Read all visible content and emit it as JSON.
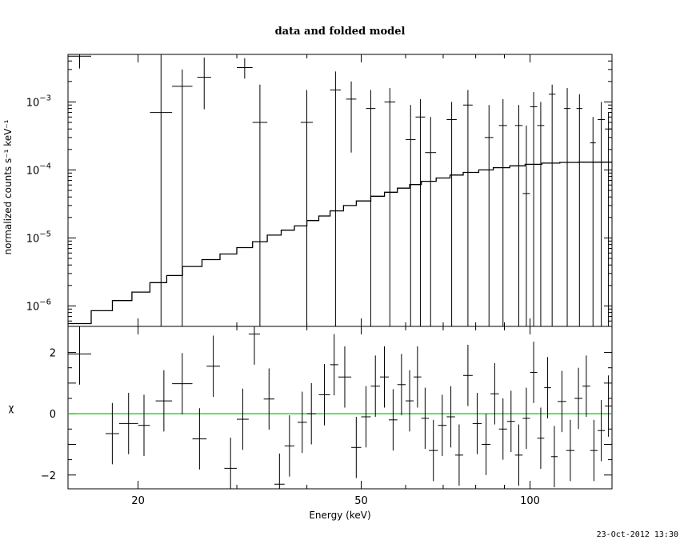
{
  "title": "data and folded model",
  "timestamp": "23-Oct-2012 13:30",
  "chart_data": [
    {
      "panel": "top",
      "type": "scatter",
      "ylabel": "normalized counts s⁻¹ keV⁻¹",
      "y_scale": "log",
      "xlim": [
        15,
        140
      ],
      "ylim": [
        5e-07,
        0.005
      ],
      "yticks": [
        {
          "base": "10",
          "exp": "−3",
          "value": 0.001
        },
        {
          "base": "10",
          "exp": "−4",
          "value": 0.0001
        },
        {
          "base": "10",
          "exp": "−5",
          "value": 1e-05
        },
        {
          "base": "10",
          "exp": "−6",
          "value": 1e-06
        }
      ],
      "data_points": [
        {
          "x0": 15.0,
          "x1": 16.5,
          "y": 0.0047,
          "ylo": 0.0031,
          "yhi": 0.006
        },
        {
          "x0": 16.5,
          "x1": 18.0,
          "y": 5e-07,
          "ylo": 5e-07,
          "yhi": 5e-07
        },
        {
          "x0": 21.0,
          "x1": 23.0,
          "y": 0.0007,
          "ylo": 5e-07,
          "yhi": 0.0055
        },
        {
          "x0": 23.0,
          "x1": 25.0,
          "y": 0.0017,
          "ylo": 5e-07,
          "yhi": 0.003
        },
        {
          "x0": 25.5,
          "x1": 27.0,
          "y": 0.0023,
          "ylo": 0.00078,
          "yhi": 0.0045
        },
        {
          "x0": 30.0,
          "x1": 32.0,
          "y": 0.0032,
          "ylo": 0.0022,
          "yhi": 0.0044
        },
        {
          "x0": 32.0,
          "x1": 34.0,
          "y": 0.0005,
          "ylo": 5e-07,
          "yhi": 0.0018
        },
        {
          "x0": 39.0,
          "x1": 41.0,
          "y": 0.0005,
          "ylo": 5e-07,
          "yhi": 0.0015
        },
        {
          "x0": 44.0,
          "x1": 46.0,
          "y": 0.0015,
          "ylo": 5e-07,
          "yhi": 0.0028
        },
        {
          "x0": 47.0,
          "x1": 49.0,
          "y": 0.0011,
          "ylo": 0.00018,
          "yhi": 0.002
        },
        {
          "x0": 51.0,
          "x1": 53.0,
          "y": 0.0008,
          "ylo": 5e-07,
          "yhi": 0.0015
        },
        {
          "x0": 55.0,
          "x1": 57.5,
          "y": 0.001,
          "ylo": 5e-07,
          "yhi": 0.0016
        },
        {
          "x0": 60.0,
          "x1": 62.5,
          "y": 0.00028,
          "ylo": 5e-07,
          "yhi": 0.0009
        },
        {
          "x0": 62.5,
          "x1": 65.0,
          "y": 0.0006,
          "ylo": 5e-07,
          "yhi": 0.0011
        },
        {
          "x0": 65.0,
          "x1": 68.0,
          "y": 0.00018,
          "ylo": 5e-07,
          "yhi": 0.0006
        },
        {
          "x0": 71.0,
          "x1": 74.0,
          "y": 0.00055,
          "ylo": 5e-07,
          "yhi": 0.001
        },
        {
          "x0": 76.0,
          "x1": 79.0,
          "y": 0.0009,
          "ylo": 5e-07,
          "yhi": 0.0015
        },
        {
          "x0": 83.0,
          "x1": 86.0,
          "y": 0.0003,
          "ylo": 5e-07,
          "yhi": 0.0009
        },
        {
          "x0": 88.0,
          "x1": 91.0,
          "y": 0.00045,
          "ylo": 5e-07,
          "yhi": 0.0011
        },
        {
          "x0": 94.0,
          "x1": 97.0,
          "y": 0.00045,
          "ylo": 5e-07,
          "yhi": 0.0009
        },
        {
          "x0": 97.0,
          "x1": 100.0,
          "y": 4.5e-05,
          "ylo": 5e-07,
          "yhi": 0.00045
        },
        {
          "x0": 100.0,
          "x1": 103.0,
          "y": 0.00085,
          "ylo": 5e-07,
          "yhi": 0.0014
        },
        {
          "x0": 103.0,
          "x1": 106.0,
          "y": 0.00045,
          "ylo": 5e-07,
          "yhi": 0.001
        },
        {
          "x0": 108.0,
          "x1": 111.0,
          "y": 0.0013,
          "ylo": 5e-07,
          "yhi": 0.0018
        },
        {
          "x0": 115.0,
          "x1": 118.0,
          "y": 0.0008,
          "ylo": 5e-07,
          "yhi": 0.0016
        },
        {
          "x0": 121.0,
          "x1": 124.0,
          "y": 0.0008,
          "ylo": 5e-07,
          "yhi": 0.0013
        },
        {
          "x0": 128.0,
          "x1": 131.0,
          "y": 0.00025,
          "ylo": 5e-07,
          "yhi": 0.0006
        },
        {
          "x0": 132.0,
          "x1": 136.0,
          "y": 0.00055,
          "ylo": 5e-07,
          "yhi": 0.001
        },
        {
          "x0": 136.0,
          "x1": 140.0,
          "y": 0.0004,
          "ylo": 5e-07,
          "yhi": 0.0007
        }
      ],
      "model_step": [
        {
          "x0": 15.0,
          "x1": 16.5,
          "y": 5.5e-07
        },
        {
          "x0": 16.5,
          "x1": 18.0,
          "y": 8.5e-07
        },
        {
          "x0": 18.0,
          "x1": 19.5,
          "y": 1.2e-06
        },
        {
          "x0": 19.5,
          "x1": 21.0,
          "y": 1.6e-06
        },
        {
          "x0": 21.0,
          "x1": 22.5,
          "y": 2.2e-06
        },
        {
          "x0": 22.5,
          "x1": 24.0,
          "y": 2.8e-06
        },
        {
          "x0": 24.0,
          "x1": 26.0,
          "y": 3.8e-06
        },
        {
          "x0": 26.0,
          "x1": 28.0,
          "y": 4.8e-06
        },
        {
          "x0": 28.0,
          "x1": 30.0,
          "y": 5.8e-06
        },
        {
          "x0": 30.0,
          "x1": 32.0,
          "y": 7.2e-06
        },
        {
          "x0": 32.0,
          "x1": 34.0,
          "y": 8.8e-06
        },
        {
          "x0": 34.0,
          "x1": 36.0,
          "y": 1.1e-05
        },
        {
          "x0": 36.0,
          "x1": 38.0,
          "y": 1.3e-05
        },
        {
          "x0": 38.0,
          "x1": 40.0,
          "y": 1.5e-05
        },
        {
          "x0": 40.0,
          "x1": 42.0,
          "y": 1.8e-05
        },
        {
          "x0": 42.0,
          "x1": 44.0,
          "y": 2.1e-05
        },
        {
          "x0": 44.0,
          "x1": 46.5,
          "y": 2.5e-05
        },
        {
          "x0": 46.5,
          "x1": 49.0,
          "y": 3e-05
        },
        {
          "x0": 49.0,
          "x1": 52.0,
          "y": 3.5e-05
        },
        {
          "x0": 52.0,
          "x1": 55.0,
          "y": 4.1e-05
        },
        {
          "x0": 55.0,
          "x1": 58.0,
          "y": 4.7e-05
        },
        {
          "x0": 58.0,
          "x1": 61.0,
          "y": 5.4e-05
        },
        {
          "x0": 61.0,
          "x1": 64.0,
          "y": 6.1e-05
        },
        {
          "x0": 64.0,
          "x1": 68.0,
          "y": 6.8e-05
        },
        {
          "x0": 68.0,
          "x1": 72.0,
          "y": 7.6e-05
        },
        {
          "x0": 72.0,
          "x1": 76.0,
          "y": 8.4e-05
        },
        {
          "x0": 76.0,
          "x1": 81.0,
          "y": 9.2e-05
        },
        {
          "x0": 81.0,
          "x1": 86.0,
          "y": 0.0001
        },
        {
          "x0": 86.0,
          "x1": 92.0,
          "y": 0.000108
        },
        {
          "x0": 92.0,
          "x1": 98.0,
          "y": 0.000115
        },
        {
          "x0": 98.0,
          "x1": 105.0,
          "y": 0.000121
        },
        {
          "x0": 105.0,
          "x1": 113.0,
          "y": 0.000126
        },
        {
          "x0": 113.0,
          "x1": 122.0,
          "y": 0.000129
        },
        {
          "x0": 122.0,
          "x1": 131.0,
          "y": 0.00013
        },
        {
          "x0": 131.0,
          "x1": 140.0,
          "y": 0.00013
        }
      ]
    },
    {
      "panel": "bottom",
      "type": "scatter",
      "ylabel": "χ",
      "xlabel": "Energy (keV)",
      "x_scale": "log",
      "xlim": [
        15,
        140
      ],
      "ylim": [
        -2.45,
        2.85
      ],
      "xticks": [
        20,
        50,
        100
      ],
      "yticks": [
        2,
        0,
        -2
      ],
      "zero_line_color": "#00cc00",
      "data_points": [
        {
          "x0": 15.0,
          "x1": 16.5,
          "y": 1.95,
          "ylo": 0.95,
          "yhi": 2.95
        },
        {
          "x0": 17.5,
          "x1": 18.5,
          "y": -0.65,
          "ylo": -1.65,
          "yhi": 0.35
        },
        {
          "x0": 18.5,
          "x1": 20.0,
          "y": -0.32,
          "ylo": -1.32,
          "yhi": 0.68
        },
        {
          "x0": 20.0,
          "x1": 21.0,
          "y": -0.38,
          "ylo": -1.38,
          "yhi": 0.62
        },
        {
          "x0": 21.5,
          "x1": 23.0,
          "y": 0.42,
          "ylo": -0.58,
          "yhi": 1.42
        },
        {
          "x0": 23.0,
          "x1": 25.0,
          "y": 0.98,
          "ylo": -0.02,
          "yhi": 1.98
        },
        {
          "x0": 25.0,
          "x1": 26.5,
          "y": -0.82,
          "ylo": -1.82,
          "yhi": 0.18
        },
        {
          "x0": 26.5,
          "x1": 28.0,
          "y": 1.55,
          "ylo": 0.55,
          "yhi": 2.55
        },
        {
          "x0": 28.5,
          "x1": 30.0,
          "y": -1.78,
          "ylo": -2.45,
          "yhi": -0.78
        },
        {
          "x0": 30.0,
          "x1": 31.5,
          "y": -0.18,
          "ylo": -1.18,
          "yhi": 0.82
        },
        {
          "x0": 31.5,
          "x1": 33.0,
          "y": 2.6,
          "ylo": 1.6,
          "yhi": 2.85
        },
        {
          "x0": 33.5,
          "x1": 35.0,
          "y": 0.48,
          "ylo": -0.52,
          "yhi": 1.48
        },
        {
          "x0": 35.0,
          "x1": 36.5,
          "y": -2.3,
          "ylo": -2.45,
          "yhi": -1.3
        },
        {
          "x0": 36.5,
          "x1": 38.0,
          "y": -1.05,
          "ylo": -2.05,
          "yhi": -0.05
        },
        {
          "x0": 38.5,
          "x1": 40.0,
          "y": -0.28,
          "ylo": -1.28,
          "yhi": 0.72
        },
        {
          "x0": 40.0,
          "x1": 41.5,
          "y": 0.0,
          "ylo": -1.0,
          "yhi": 1.0
        },
        {
          "x0": 42.0,
          "x1": 44.0,
          "y": 0.62,
          "ylo": -0.38,
          "yhi": 1.62
        },
        {
          "x0": 44.0,
          "x1": 45.5,
          "y": 1.6,
          "ylo": 0.6,
          "yhi": 2.6
        },
        {
          "x0": 45.5,
          "x1": 48.0,
          "y": 1.2,
          "ylo": 0.2,
          "yhi": 2.2
        },
        {
          "x0": 48.0,
          "x1": 50.0,
          "y": -1.1,
          "ylo": -2.1,
          "yhi": -0.1
        },
        {
          "x0": 50.0,
          "x1": 52.0,
          "y": -0.1,
          "ylo": -1.1,
          "yhi": 0.9
        },
        {
          "x0": 52.0,
          "x1": 54.0,
          "y": 0.9,
          "ylo": -0.1,
          "yhi": 1.9
        },
        {
          "x0": 54.0,
          "x1": 56.0,
          "y": 1.2,
          "ylo": 0.2,
          "yhi": 2.2
        },
        {
          "x0": 56.0,
          "x1": 58.0,
          "y": -0.2,
          "ylo": -1.2,
          "yhi": 0.8
        },
        {
          "x0": 58.0,
          "x1": 60.0,
          "y": 0.95,
          "ylo": -0.05,
          "yhi": 1.95
        },
        {
          "x0": 60.0,
          "x1": 62.0,
          "y": 0.42,
          "ylo": -0.58,
          "yhi": 1.42
        },
        {
          "x0": 62.0,
          "x1": 64.0,
          "y": 1.2,
          "ylo": 0.2,
          "yhi": 2.2
        },
        {
          "x0": 64.0,
          "x1": 66.0,
          "y": -0.15,
          "ylo": -1.15,
          "yhi": 0.85
        },
        {
          "x0": 66.0,
          "x1": 68.5,
          "y": -1.2,
          "ylo": -2.2,
          "yhi": -0.2
        },
        {
          "x0": 68.5,
          "x1": 71.0,
          "y": -0.38,
          "ylo": -1.38,
          "yhi": 0.62
        },
        {
          "x0": 71.0,
          "x1": 73.5,
          "y": -0.1,
          "ylo": -1.1,
          "yhi": 0.9
        },
        {
          "x0": 73.5,
          "x1": 76.0,
          "y": -1.35,
          "ylo": -2.35,
          "yhi": -0.35
        },
        {
          "x0": 76.0,
          "x1": 79.0,
          "y": 1.25,
          "ylo": 0.25,
          "yhi": 2.25
        },
        {
          "x0": 79.0,
          "x1": 82.0,
          "y": -0.32,
          "ylo": -1.32,
          "yhi": 0.68
        },
        {
          "x0": 82.0,
          "x1": 85.0,
          "y": -1.0,
          "ylo": -2.0,
          "yhi": 0.0
        },
        {
          "x0": 85.0,
          "x1": 88.0,
          "y": 0.65,
          "ylo": -0.35,
          "yhi": 1.65
        },
        {
          "x0": 88.0,
          "x1": 91.0,
          "y": -0.5,
          "ylo": -1.5,
          "yhi": 0.5
        },
        {
          "x0": 91.0,
          "x1": 94.0,
          "y": -0.25,
          "ylo": -1.25,
          "yhi": 0.75
        },
        {
          "x0": 94.0,
          "x1": 97.0,
          "y": -1.35,
          "ylo": -2.35,
          "yhi": -0.35
        },
        {
          "x0": 97.0,
          "x1": 100.0,
          "y": -0.15,
          "ylo": -1.15,
          "yhi": 0.85
        },
        {
          "x0": 100.0,
          "x1": 103.0,
          "y": 1.35,
          "ylo": 0.35,
          "yhi": 2.35
        },
        {
          "x0": 103.0,
          "x1": 106.0,
          "y": -0.8,
          "ylo": -1.8,
          "yhi": 0.2
        },
        {
          "x0": 106.0,
          "x1": 109.0,
          "y": 0.85,
          "ylo": -0.15,
          "yhi": 1.85
        },
        {
          "x0": 109.0,
          "x1": 112.0,
          "y": -1.4,
          "ylo": -2.4,
          "yhi": -0.4
        },
        {
          "x0": 112.0,
          "x1": 116.0,
          "y": 0.4,
          "ylo": -0.6,
          "yhi": 1.4
        },
        {
          "x0": 116.0,
          "x1": 120.0,
          "y": -1.2,
          "ylo": -2.2,
          "yhi": -0.2
        },
        {
          "x0": 120.0,
          "x1": 124.0,
          "y": 0.5,
          "ylo": -0.5,
          "yhi": 1.5
        },
        {
          "x0": 124.0,
          "x1": 128.0,
          "y": 0.9,
          "ylo": -0.1,
          "yhi": 1.9
        },
        {
          "x0": 128.0,
          "x1": 132.0,
          "y": -1.2,
          "ylo": -2.2,
          "yhi": -0.2
        },
        {
          "x0": 132.0,
          "x1": 136.0,
          "y": -0.55,
          "ylo": -1.55,
          "yhi": 0.45
        },
        {
          "x0": 136.0,
          "x1": 140.0,
          "y": 0.25,
          "ylo": -0.75,
          "yhi": 1.25
        }
      ]
    }
  ]
}
